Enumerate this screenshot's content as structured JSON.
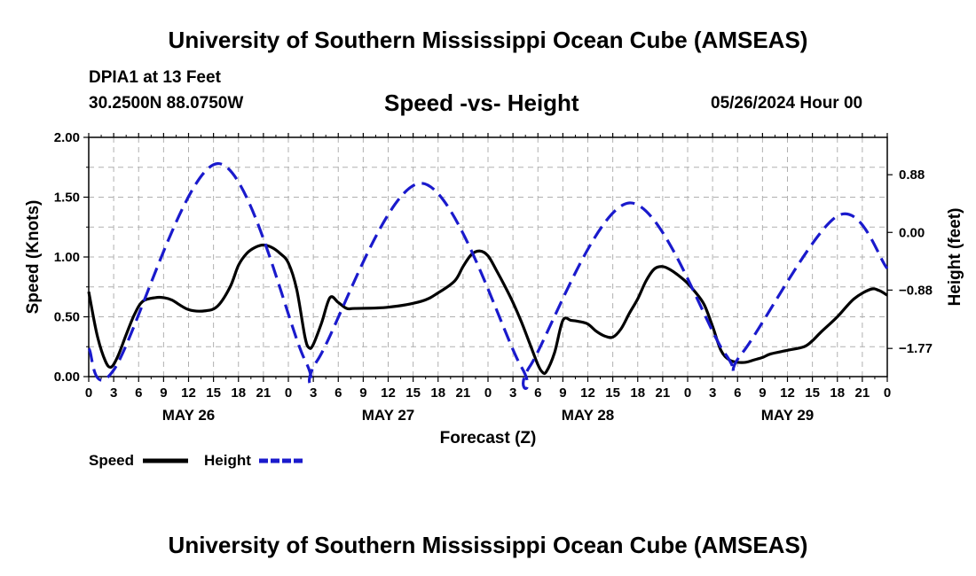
{
  "page": {
    "main_title": "University of Southern Mississippi Ocean Cube (AMSEAS)",
    "bottom_title": "University of Southern Mississippi Ocean Cube (AMSEAS)",
    "station_name": "DPIA1 at 13 Feet",
    "station_coords": "30.2500N  88.0750W",
    "chart_title": "Speed -vs- Height",
    "datetime": "05/26/2024 Hour 00"
  },
  "legend": {
    "speed_label": "Speed",
    "height_label": "Height"
  },
  "colors": {
    "speed": "#000000",
    "height": "#1a1acc",
    "grid": "#b0b0b0"
  },
  "chart_data": {
    "type": "line",
    "title": "Speed -vs- Height",
    "xlabel": "Forecast (Z)",
    "ylabel": "Speed (Knots)",
    "y2label": "Height (feet)",
    "xlim": [
      0,
      96
    ],
    "ylim": [
      0,
      2.0
    ],
    "y2lim": [
      -2.2,
      1.45
    ],
    "x_tick_labels": [
      "0",
      "3",
      "6",
      "9",
      "12",
      "15",
      "18",
      "21",
      "0",
      "3",
      "6",
      "9",
      "12",
      "15",
      "18",
      "21",
      "0",
      "3",
      "6",
      "9",
      "12",
      "15",
      "18",
      "21",
      "0",
      "3",
      "6",
      "9",
      "12",
      "15",
      "18",
      "21",
      "0"
    ],
    "x_day_labels": [
      {
        "hour": 12,
        "label": "MAY 26"
      },
      {
        "hour": 36,
        "label": "MAY 27"
      },
      {
        "hour": 60,
        "label": "MAY 28"
      },
      {
        "hour": 84,
        "label": "MAY 29"
      }
    ],
    "y_tick_labels": [
      "0.00",
      "0.50",
      "1.00",
      "1.50",
      "2.00"
    ],
    "y2_ticks": [
      {
        "value": -1.77,
        "label": "−1.77"
      },
      {
        "value": -0.88,
        "label": "−0.88"
      },
      {
        "value": 0.0,
        "label": "0.00"
      },
      {
        "value": 0.88,
        "label": "0.88"
      }
    ],
    "series": [
      {
        "name": "Speed",
        "axis": "left",
        "style": "solid",
        "x": [
          0,
          1,
          2,
          2.7,
          3.5,
          4.5,
          5.5,
          6.5,
          8,
          9,
          10,
          12,
          14,
          15.5,
          17,
          18,
          19,
          20,
          21,
          22,
          23,
          24,
          25,
          26,
          26.5,
          27,
          28,
          29,
          30,
          31,
          32,
          36,
          40,
          42,
          44,
          45,
          46,
          47,
          48,
          49,
          50,
          51,
          52,
          53,
          54,
          54.5,
          55,
          56,
          57,
          58,
          59,
          60,
          61,
          62,
          63,
          64,
          65,
          66,
          67,
          68,
          69,
          70,
          71,
          72,
          73,
          74,
          75,
          76,
          77,
          78,
          79,
          80,
          81,
          82,
          84,
          86,
          87,
          88,
          90,
          92,
          94,
          95,
          96
        ],
        "values": [
          0.71,
          0.35,
          0.13,
          0.08,
          0.17,
          0.35,
          0.52,
          0.63,
          0.66,
          0.66,
          0.64,
          0.56,
          0.55,
          0.59,
          0.75,
          0.93,
          1.03,
          1.08,
          1.1,
          1.08,
          1.03,
          0.95,
          0.73,
          0.33,
          0.24,
          0.27,
          0.45,
          0.66,
          0.62,
          0.57,
          0.57,
          0.58,
          0.63,
          0.7,
          0.8,
          0.92,
          1.02,
          1.05,
          1.01,
          0.89,
          0.76,
          0.62,
          0.46,
          0.28,
          0.1,
          0.04,
          0.04,
          0.2,
          0.47,
          0.47,
          0.46,
          0.44,
          0.38,
          0.34,
          0.33,
          0.4,
          0.53,
          0.65,
          0.8,
          0.9,
          0.92,
          0.89,
          0.84,
          0.78,
          0.7,
          0.6,
          0.42,
          0.22,
          0.14,
          0.12,
          0.12,
          0.14,
          0.16,
          0.19,
          0.22,
          0.25,
          0.3,
          0.37,
          0.5,
          0.65,
          0.73,
          0.72,
          0.68
        ]
      },
      {
        "name": "Height",
        "axis": "right",
        "style": "dashed",
        "x": [
          0,
          3,
          15.5,
          26,
          27.5,
          40,
          52,
          53,
          65,
          76.5,
          78.5,
          90,
          96
        ],
        "values": [
          -1.77,
          -2.1,
          1.05,
          -1.95,
          -1.95,
          0.75,
          -2.05,
          -2.05,
          0.45,
          -1.85,
          -1.85,
          0.25,
          -0.55
        ]
      }
    ]
  }
}
